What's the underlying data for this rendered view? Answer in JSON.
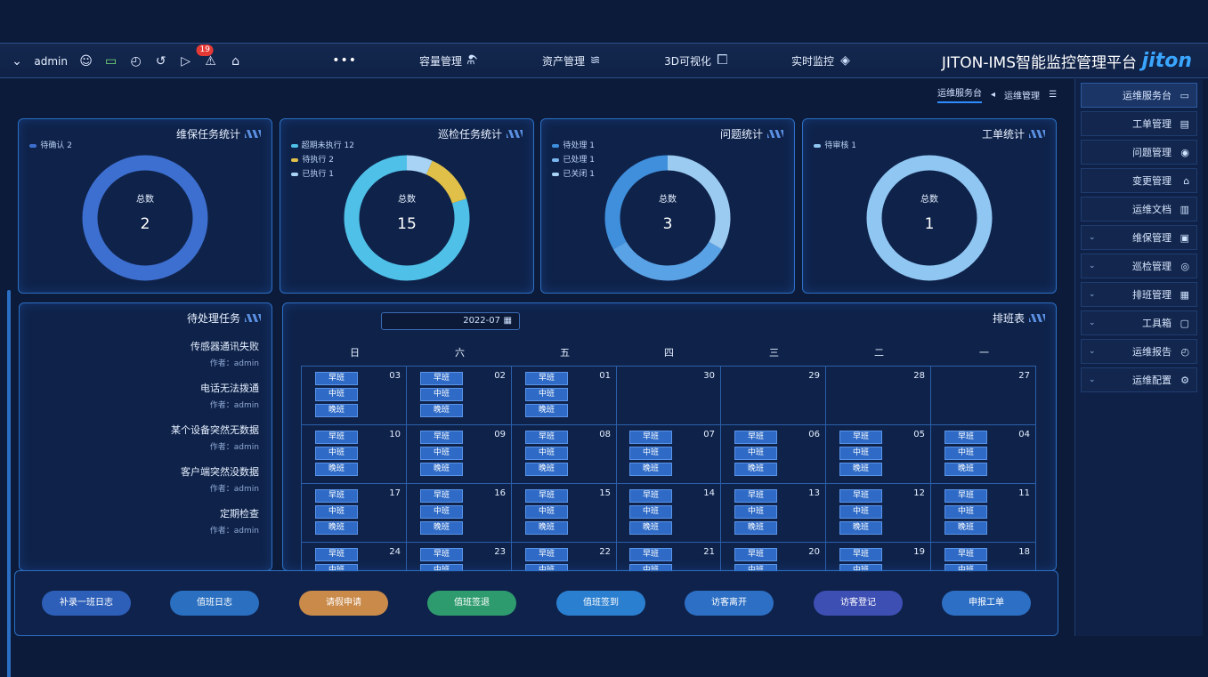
{
  "app": {
    "logo": "jiton",
    "title": "JITON-IMS智能监控管理平台"
  },
  "topnav": [
    {
      "label": "实时监控",
      "icon": "monitor-shield-icon"
    },
    {
      "label": "3D可视化",
      "icon": "cube-icon"
    },
    {
      "label": "资产管理",
      "icon": "layers-icon"
    },
    {
      "label": "容量管理",
      "icon": "flask-icon"
    }
  ],
  "topbar": {
    "more": "•••",
    "badge_count": "19",
    "user": "admin"
  },
  "sidemenu": [
    {
      "label": "运维服务台",
      "icon": "desk-icon",
      "active": true
    },
    {
      "label": "工单管理",
      "icon": "doc-icon"
    },
    {
      "label": "问题管理",
      "icon": "pin-icon"
    },
    {
      "label": "变更管理",
      "icon": "home-icon"
    },
    {
      "label": "运维文档",
      "icon": "file-icon"
    },
    {
      "label": "维保管理",
      "icon": "book-icon",
      "expandable": true
    },
    {
      "label": "巡检管理",
      "icon": "target-icon",
      "expandable": true
    },
    {
      "label": "排班管理",
      "icon": "calendar-icon",
      "expandable": true
    },
    {
      "label": "工具箱",
      "icon": "toolbox-icon",
      "expandable": true
    },
    {
      "label": "运维报告",
      "icon": "clock-icon",
      "expandable": true
    },
    {
      "label": "运维配置",
      "icon": "gear-icon",
      "expandable": true
    }
  ],
  "breadcrumb": {
    "parent": "运维管理",
    "current": "运维服务台"
  },
  "stats": [
    {
      "title": "工单统计",
      "center_label": "总数",
      "total": "1",
      "legend": [
        {
          "label": "待审核 1",
          "color": "#8fc6f2"
        }
      ],
      "slices": [
        {
          "value": 1,
          "color": "#8fc6f2"
        }
      ]
    },
    {
      "title": "问题统计",
      "center_label": "总数",
      "total": "3",
      "legend": [
        {
          "label": "待处理 1",
          "color": "#3f8fdc"
        },
        {
          "label": "已处理 1",
          "color": "#7ab6ee"
        },
        {
          "label": "已关闭 1",
          "color": "#a9d3f5"
        }
      ],
      "slices": [
        {
          "value": 1,
          "color": "#3f8fdc"
        },
        {
          "value": 1,
          "color": "#5aa2e6"
        },
        {
          "value": 1,
          "color": "#9ccbf2"
        }
      ]
    },
    {
      "title": "巡检任务统计",
      "center_label": "总数",
      "total": "15",
      "legend": [
        {
          "label": "超期未执行 12",
          "color": "#4fc0e8"
        },
        {
          "label": "待执行 2",
          "color": "#e0c048"
        },
        {
          "label": "已执行 1",
          "color": "#a9d3f5"
        }
      ],
      "slices": [
        {
          "value": 12,
          "color": "#4fc0e8"
        },
        {
          "value": 2,
          "color": "#e0c048"
        },
        {
          "value": 1,
          "color": "#a9d3f5"
        }
      ]
    },
    {
      "title": "维保任务统计",
      "center_label": "总数",
      "total": "2",
      "legend": [
        {
          "label": "待确认 2",
          "color": "#3d6fd0"
        }
      ],
      "slices": [
        {
          "value": 2,
          "color": "#3d6fd0"
        }
      ]
    }
  ],
  "schedule": {
    "title": "排班表",
    "month": "2022-07",
    "weekdays": [
      "一",
      "二",
      "三",
      "四",
      "五",
      "六",
      "日"
    ],
    "shift_labels": [
      "早班",
      "中班",
      "晚班"
    ],
    "weeks": [
      [
        {
          "d": "27",
          "s": false
        },
        {
          "d": "28",
          "s": false
        },
        {
          "d": "29",
          "s": false
        },
        {
          "d": "30",
          "s": false
        },
        {
          "d": "01",
          "s": true
        },
        {
          "d": "02",
          "s": true
        },
        {
          "d": "03",
          "s": true
        }
      ],
      [
        {
          "d": "04",
          "s": true
        },
        {
          "d": "05",
          "s": true
        },
        {
          "d": "06",
          "s": true
        },
        {
          "d": "07",
          "s": true
        },
        {
          "d": "08",
          "s": true
        },
        {
          "d": "09",
          "s": true
        },
        {
          "d": "10",
          "s": true
        }
      ],
      [
        {
          "d": "11",
          "s": true
        },
        {
          "d": "12",
          "s": true
        },
        {
          "d": "13",
          "s": true
        },
        {
          "d": "14",
          "s": true
        },
        {
          "d": "15",
          "s": true
        },
        {
          "d": "16",
          "s": true
        },
        {
          "d": "17",
          "s": true
        }
      ],
      [
        {
          "d": "18",
          "s": true
        },
        {
          "d": "19",
          "s": true
        },
        {
          "d": "20",
          "s": true
        },
        {
          "d": "21",
          "s": true
        },
        {
          "d": "22",
          "s": true
        },
        {
          "d": "23",
          "s": true
        },
        {
          "d": "24",
          "s": true
        }
      ]
    ]
  },
  "todo": {
    "title": "待处理任务",
    "author_prefix": "作者：",
    "items": [
      {
        "title": "传感器通讯失败",
        "author": "admin"
      },
      {
        "title": "电话无法拨通",
        "author": "admin"
      },
      {
        "title": "某个设备突然无数据",
        "author": "admin"
      },
      {
        "title": "客户端突然没数据",
        "author": "admin"
      },
      {
        "title": "定期检查",
        "author": "admin"
      }
    ]
  },
  "actions": [
    {
      "label": "申报工单",
      "color": "#2d6fc4"
    },
    {
      "label": "访客登记",
      "color": "#3e4fb4"
    },
    {
      "label": "访客离开",
      "color": "#2d6fc4"
    },
    {
      "label": "值班签到",
      "color": "#2a7fd0"
    },
    {
      "label": "值班签退",
      "color": "#2e9b6e"
    },
    {
      "label": "请假申请",
      "color": "#c98a4a"
    },
    {
      "label": "值班日志",
      "color": "#2a6fc0"
    },
    {
      "label": "补录一班日志",
      "color": "#2d5fb8"
    }
  ]
}
